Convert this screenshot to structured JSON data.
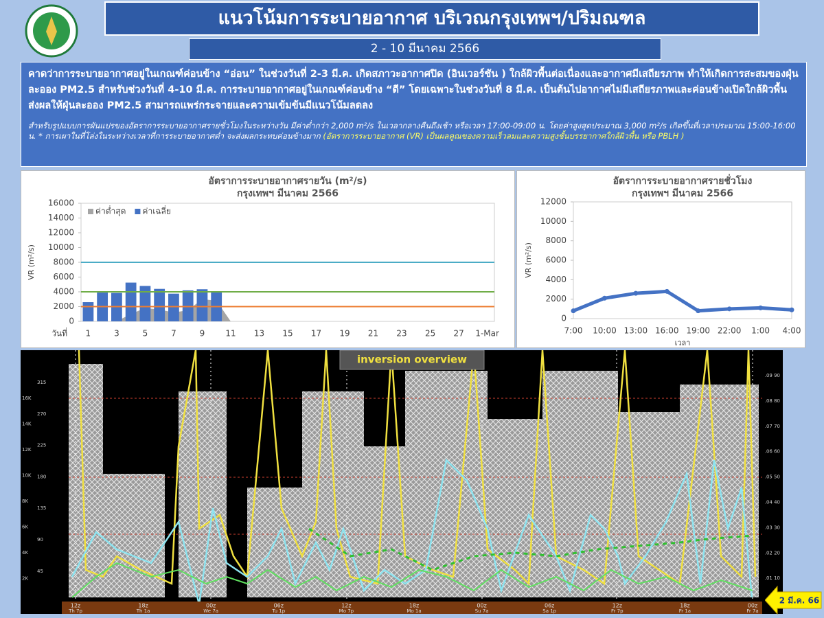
{
  "header": {
    "title": "แนวโน้มการระบายอากาศ บริเวณกรุงเทพฯ/ปริมณฑล",
    "date_range": "2 - 10 มีนาคม 2566"
  },
  "summary": {
    "text": "คาดว่าการระบายอากาศอยู่ในเกณฑ์ค่อนข้าง “อ่อน” ในช่วงวันที่ 2-3 มี.ค. เกิดสภาวะอากาศปิด (อินเวอร์ชัน ) ใกล้ผิวพื้นต่อเนื่องและอากาศมีเสถียรภาพ ทำให้เกิดการสะสมของฝุ่นละออง PM2.5 สำหรับช่วงวันที่ 4-10 มี.ค. การระบายอากาศอยู่ในเกณฑ์ค่อนข้าง “ดี” โดยเฉพาะในช่วงวันที่ 8 มี.ค. เป็นต้นไปอากาศไม่มีเสถียรภาพและค่อนข้างเปิดใกล้ผิวพื้น ส่งผลให้ฝุ่นละออง PM2.5 สามารถแพร่กระจายและความเข้มข้นมีแนวโน้มลดลง",
    "note": "สำหรับรูปแบบการผันแปรของอัตราการระบายอากาศรายชั่วโมงในระหว่างวัน มีค่าต่ำกว่า 2,000 m²/s ในเวลากลางคืนถึงเช้า หรือเวลา 17:00-09:00 น. โดยค่าสูงสุดประมาณ 3,000 m²/s เกิดขึ้นที่เวลาประมาณ 15:00-16:00 น. * การเผาในที่โล่งในระหว่างเวลาที่การระบายอากาศต่ำ จะส่งผลกระทบค่อนข้างมาก",
    "definition": "(อัตราการระบายอากาศ (VR) เป็นผลคูณของความเร็วลมและความสูงชั้นบรรยากาศใกล้ผิวพื้น หรือ PBLH )"
  },
  "chart_data": [
    {
      "type": "bar",
      "title": "อัตราการระบายอากาศรายวัน (m²/s)",
      "subtitle": "กรุงเทพฯ มีนาคม 2566",
      "x_label": "วันที่",
      "y_label": "VR (m²/s)",
      "categories": [
        "1",
        null,
        "3",
        null,
        "5",
        null,
        "7",
        null,
        "9",
        null,
        "11",
        null,
        "13",
        null,
        "15",
        null,
        "17",
        null,
        "19",
        null,
        "21",
        null,
        "23",
        null,
        "25",
        null,
        "27",
        null,
        "1-Mar"
      ],
      "series": [
        {
          "name": "ค่าต่ำสุด",
          "color": "#a5a5a5",
          "type": "area",
          "values": [
            0,
            0,
            0,
            1000,
            1800,
            1600,
            1200,
            1500,
            3000,
            2800,
            null,
            null,
            null,
            null,
            null,
            null,
            null,
            null,
            null,
            null,
            null,
            null,
            null,
            null,
            null,
            null,
            null,
            null,
            null
          ]
        },
        {
          "name": "ค่าเฉลี่ย",
          "color": "#4472c4",
          "type": "bar",
          "values": [
            2600,
            3900,
            3850,
            5250,
            4800,
            4400,
            3750,
            4200,
            4350,
            3950,
            null,
            null,
            null,
            null,
            null,
            null,
            null,
            null,
            null,
            null,
            null,
            null,
            null,
            null,
            null,
            null,
            null,
            null,
            null
          ]
        }
      ],
      "reference_lines": [
        {
          "value": 8000,
          "color": "#4bacc6"
        },
        {
          "value": 4000,
          "color": "#70ad47"
        },
        {
          "value": 2000,
          "color": "#ed7d31"
        }
      ],
      "ylim": [
        0,
        16000
      ],
      "yticks": [
        0,
        2000,
        4000,
        6000,
        8000,
        10000,
        12000,
        14000,
        16000
      ],
      "legend": "top-left"
    },
    {
      "type": "line",
      "title": "อัตราการระบายอากาศรายชั่วโมง",
      "subtitle": "กรุงเทพฯ มีนาคม 2566",
      "x_label": "เวลา",
      "y_label": "VR (m²/s)",
      "categories": [
        "7:00",
        "10:00",
        "13:00",
        "16:00",
        "19:00",
        "22:00",
        "1:00",
        "4:00"
      ],
      "values": [
        800,
        2100,
        2600,
        2800,
        800,
        1000,
        1100,
        900
      ],
      "color": "#4472c4",
      "ylim": [
        0,
        12000
      ],
      "yticks": [
        0,
        2000,
        4000,
        6000,
        8000,
        10000,
        12000
      ]
    }
  ],
  "inversion_overview": {
    "title": "inversion overview",
    "time_labels": [
      [
        "12z",
        "Th 7p"
      ],
      [
        "18z",
        "Th 1a"
      ],
      [
        "00z",
        "We 7a"
      ],
      [
        "06z",
        "Tu 1p"
      ],
      [
        "12z",
        "Mo 7p"
      ],
      [
        "18z",
        "Mo 1a"
      ],
      [
        "00z",
        "Su 7a"
      ],
      [
        "06z",
        "Sa 1p"
      ],
      [
        "12z",
        "Fr 7p"
      ],
      [
        "18z",
        "Fr 1a"
      ],
      [
        "00z",
        "Fr 7a"
      ]
    ],
    "height_labels": [
      "16K",
      "14K",
      "12K",
      "10K",
      "8K",
      "6K",
      "4K",
      "2K"
    ],
    "direction_labels": [
      "315",
      "270",
      "225",
      "180",
      "135",
      "90",
      "45"
    ],
    "right_labels": [
      ".09 90",
      ".08 80",
      ".07 70",
      ".06 60",
      ".05 50",
      ".04 40",
      ".03 30",
      ".02 20",
      ".01 10"
    ]
  },
  "date_tag": "2 มี.ค. 66"
}
